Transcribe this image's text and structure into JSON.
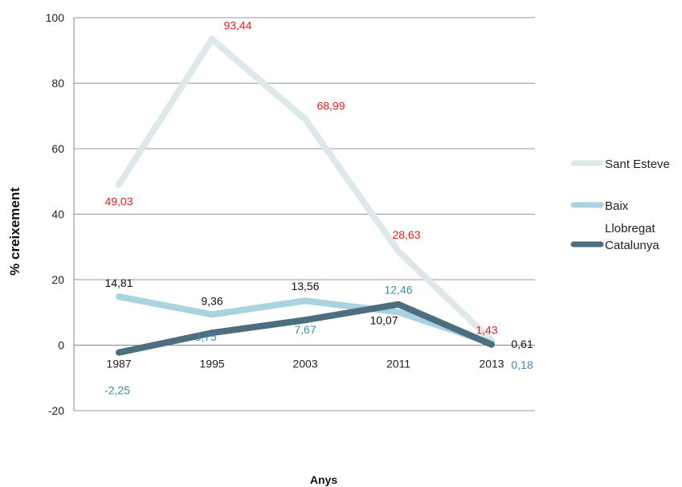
{
  "chart_data": {
    "type": "line",
    "xlabel": "Anys",
    "ylabel": "% creixement",
    "categories": [
      "1987",
      "1995",
      "2003",
      "2011",
      "2013"
    ],
    "ylim": [
      -20,
      100
    ],
    "yticks": [
      "-20",
      "0",
      "20",
      "40",
      "60",
      "80",
      "100"
    ],
    "grid": true,
    "legend_position": "right",
    "series": [
      {
        "name": "Sant Esteve",
        "color": "#dde8ea",
        "label_color": "#e02020",
        "values": [
          49.03,
          93.44,
          68.99,
          28.63,
          1.43
        ],
        "labels": [
          "49,03",
          "93,44",
          "68,99",
          "28,63",
          "1,43"
        ]
      },
      {
        "name": "Baix Llobregat",
        "legend_lines": [
          "Baix",
          "Llobregat"
        ],
        "color": "#a9d3de",
        "label_color": "#111111",
        "values": [
          14.81,
          9.36,
          13.56,
          10.07,
          0.61
        ],
        "labels": [
          "14,81",
          "9,36",
          "13,56",
          "10,07",
          "0,61"
        ]
      },
      {
        "name": "Catalunya",
        "color": "#4d6e7e",
        "label_color": "#3a8fb0",
        "values": [
          -2.25,
          3.75,
          7.67,
          12.46,
          0.18
        ],
        "labels": [
          "-2,25",
          "3,75",
          "7,67",
          "12,46",
          "0,18"
        ]
      }
    ]
  }
}
